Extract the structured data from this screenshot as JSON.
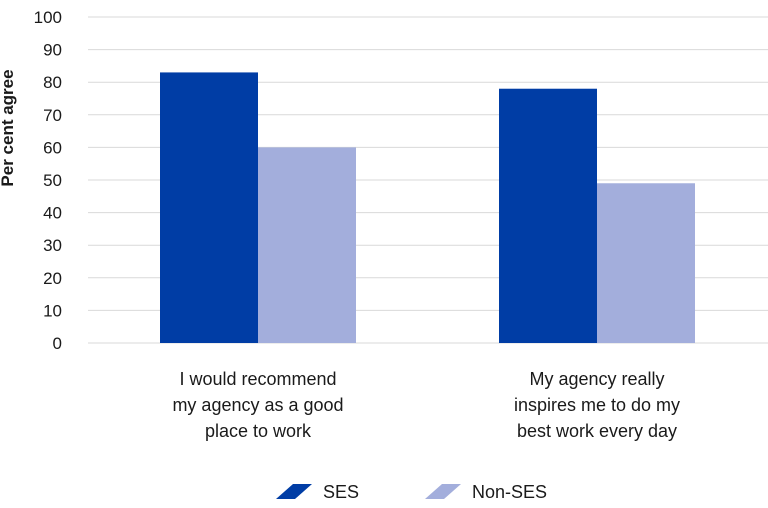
{
  "chart_data": {
    "type": "bar",
    "title": "",
    "ylabel": "Per cent agree",
    "xlabel": "",
    "ylim": [
      0,
      100
    ],
    "yticks": [
      0,
      10,
      20,
      30,
      40,
      50,
      60,
      70,
      80,
      90,
      100
    ],
    "grid": true,
    "legend_position": "bottom",
    "categories": [
      [
        "I would recommend",
        "my agency as a good",
        "place to work"
      ],
      [
        "My agency really",
        "inspires me to do my",
        "best work every day"
      ]
    ],
    "series": [
      {
        "name": "SES",
        "color": "#003DA5",
        "values": [
          83,
          78
        ]
      },
      {
        "name": "Non-SES",
        "color": "#A3AEDC",
        "values": [
          60,
          49
        ]
      }
    ]
  }
}
